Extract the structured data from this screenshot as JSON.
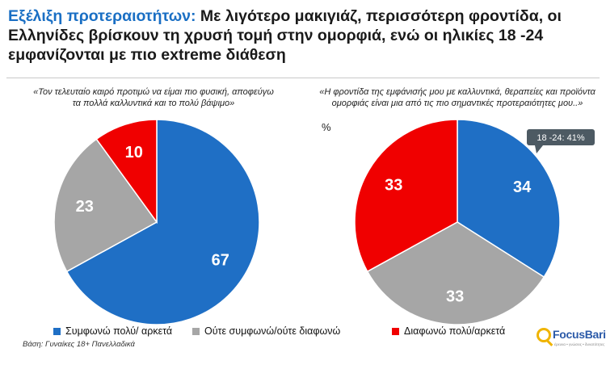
{
  "title": {
    "highlight": "Εξέλιξη προτεραιοτήτων:",
    "rest": " Με λιγότερο μακιγιάζ, περισσότερη φροντίδα, οι Ελληνίδες βρίσκουν τη χρυσή τομή στην ομορφιά, ενώ οι ηλικίες 18 -24 εμφανίζονται με πιο extreme διάθεση"
  },
  "captions": {
    "left": "«Τον τελευταίο καιρό προτιμώ να είμαι πιο φυσική, αποφεύγω τα πολλά καλλυντικά και το πολύ βάψιμο»",
    "right": "«Η φροντίδα της εμφάνισής μου με καλλυντικά, θεραπείες και προϊόντα ομορφιάς είναι μια από τις πιο σημαντικές προτεραιότητες μου..»"
  },
  "percent_sign": "%",
  "callout": "18 -24: 41%",
  "legend": [
    {
      "label": "Συμφωνώ πολύ/ αρκετά",
      "color": "#1f6fc5"
    },
    {
      "label": "Ούτε συμφωνώ/ούτε διαφωνώ",
      "color": "#a6a6a6"
    },
    {
      "label": "Διαφωνώ πολύ/αρκετά",
      "color": "#f00000"
    }
  ],
  "base_note": "Βάση: Γυναίκες 18+ Πανελλαδικά",
  "logo": {
    "name": "FocusBari",
    "tagline": "έρευνα • γνώσεις • δυνατότητες"
  },
  "chart_data": [
    {
      "type": "pie",
      "categories": [
        "Συμφωνώ πολύ/ αρκετά",
        "Ούτε συμφωνώ/ούτε διαφωνώ",
        "Διαφωνώ πολύ/αρκετά"
      ],
      "values": [
        67,
        23,
        10
      ],
      "colors": [
        "#1f6fc5",
        "#a6a6a6",
        "#f00000"
      ]
    },
    {
      "type": "pie",
      "categories": [
        "Συμφωνώ πολύ/ αρκετά",
        "Ούτε συμφωνώ/ούτε διαφωνώ",
        "Διαφωνώ πολύ/αρκετά"
      ],
      "values": [
        34,
        33,
        33
      ],
      "colors": [
        "#1f6fc5",
        "#a6a6a6",
        "#f00000"
      ],
      "annotation": "18 -24: 41%"
    }
  ]
}
